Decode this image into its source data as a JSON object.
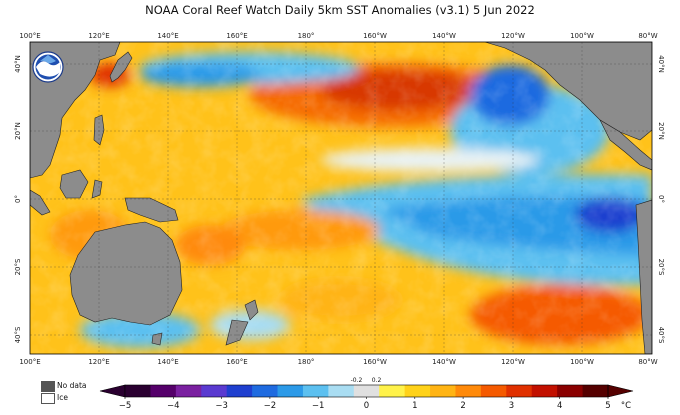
{
  "title": "NOAA Coral Reef Watch Daily 5km SST Anomalies  (v3.1)   5 Jun 2022",
  "logo_text": "NOAA",
  "lon_ticks": [
    "100°E",
    "120°E",
    "140°E",
    "160°E",
    "180°",
    "160°W",
    "140°W",
    "120°W",
    "100°W",
    "80°W"
  ],
  "lat_ticks_left": [
    "40°N",
    "20°N",
    "0°",
    "20°S",
    "40°S"
  ],
  "lat_ticks_right": [
    "40°N",
    "20°N",
    "0°",
    "20°S",
    "40°S"
  ],
  "legend": {
    "no_data": "No data",
    "ice": "Ice"
  },
  "colorbar": {
    "labels": [
      "−5",
      "−4",
      "−3",
      "−2",
      "−1",
      "0",
      "1",
      "2",
      "3",
      "4",
      "5"
    ],
    "small_labels": [
      "-0.2",
      "0.2"
    ],
    "unit": "°C",
    "colors": [
      "#2a0030",
      "#55006a",
      "#7a20a0",
      "#5a3ad0",
      "#1f3fcf",
      "#1f6be0",
      "#2c9ae8",
      "#5cc0f0",
      "#a9ddf2",
      "#e0e0e0",
      "#fff24a",
      "#ffd21a",
      "#ffb414",
      "#ff8a0a",
      "#f55a00",
      "#e03000",
      "#c21000",
      "#8a0000",
      "#550000"
    ]
  }
}
